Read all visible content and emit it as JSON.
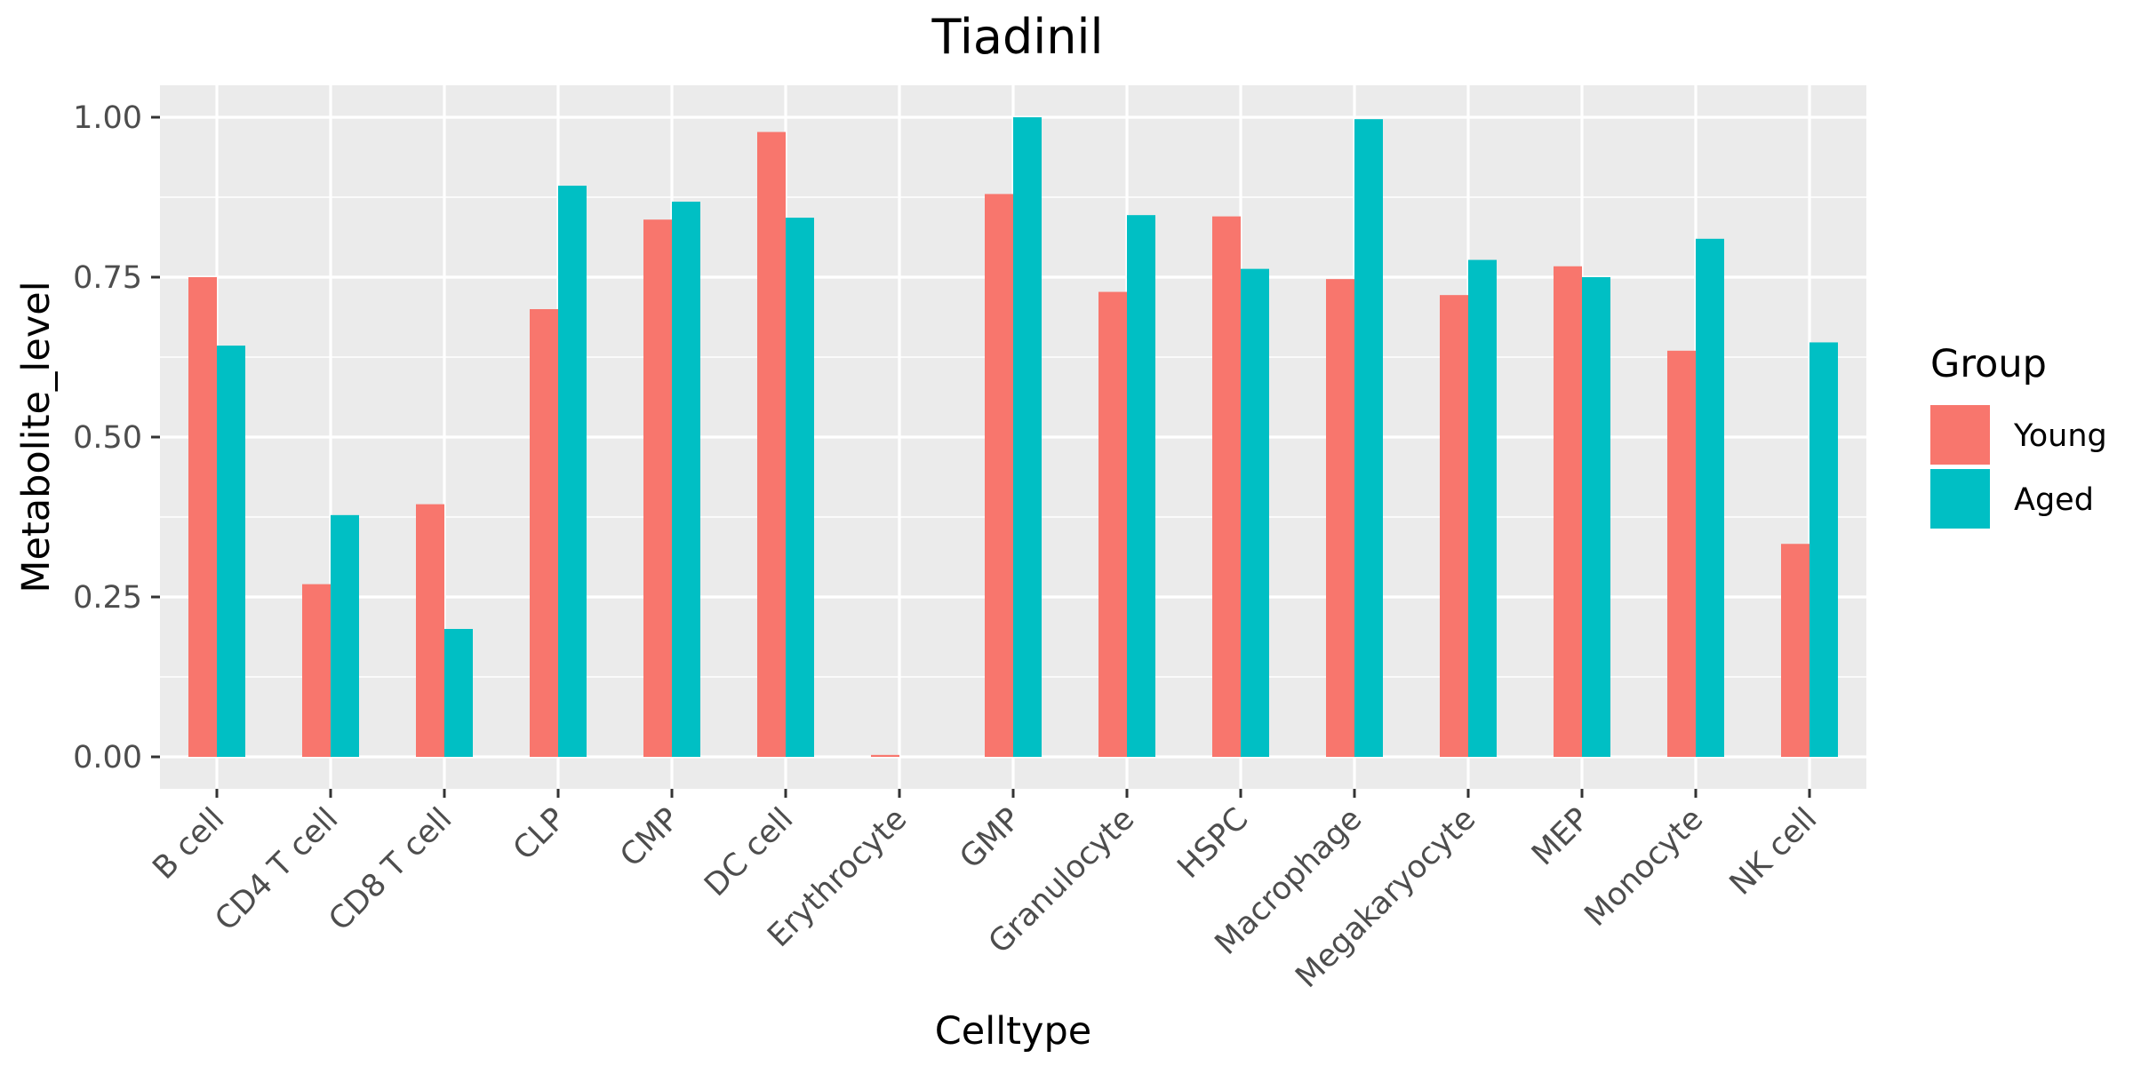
{
  "chart_data": {
    "type": "bar",
    "title": "Tiadinil",
    "xlabel": "Celltype",
    "ylabel": "Metabolite_level",
    "categories": [
      "B cell",
      "CD4 T cell",
      "CD8 T cell",
      "CLP",
      "CMP",
      "DC cell",
      "Erythrocyte",
      "GMP",
      "Granulocyte",
      "HSPC",
      "Macrophage",
      "Megakaryocyte",
      "MEP",
      "Monocyte",
      "NK cell"
    ],
    "series": [
      {
        "name": "Young",
        "color": "#F8766D",
        "values": [
          0.75,
          0.27,
          0.395,
          0.7,
          0.84,
          0.977,
          0.003,
          0.88,
          0.727,
          0.845,
          0.747,
          0.722,
          0.767,
          0.635,
          0.333
        ]
      },
      {
        "name": "Aged",
        "color": "#00BFC4",
        "values": [
          0.643,
          0.378,
          0.2,
          0.893,
          0.868,
          0.843,
          0.0,
          1.0,
          0.847,
          0.763,
          0.997,
          0.777,
          0.75,
          0.81,
          0.648
        ]
      }
    ],
    "ylim": [
      -0.05,
      1.05
    ],
    "yticks": [
      0.0,
      0.25,
      0.5,
      0.75,
      1.0
    ],
    "ytick_labels": [
      "0.00",
      "0.25",
      "0.50",
      "0.75",
      "1.00"
    ],
    "grid": true,
    "legend": {
      "title": "Group",
      "position": "right"
    },
    "panel_background": "#EBEBEB",
    "grid_color": "#FFFFFF"
  }
}
